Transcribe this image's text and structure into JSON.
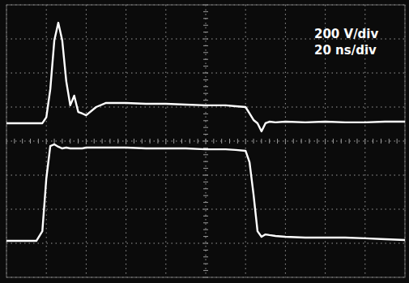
{
  "chart_data": {
    "type": "line",
    "annotations": [
      "200 V/div",
      "20 ns/div"
    ],
    "x": [
      0,
      5,
      10,
      15,
      18,
      20,
      22,
      24,
      26,
      28,
      30,
      32,
      34,
      36,
      38,
      40,
      45,
      50,
      60,
      70,
      80,
      90,
      100,
      110,
      115,
      120,
      122,
      124,
      126,
      128,
      130,
      132,
      135,
      140,
      150,
      160,
      170,
      180,
      190,
      200
    ],
    "series": [
      {
        "color": "#ffffff",
        "values": [
          105,
          105,
          105,
          105,
          105,
          140,
          305,
          590,
          695,
          590,
          352,
          210,
          267,
          171,
          162,
          152,
          200,
          224,
          224,
          219,
          219,
          214,
          210,
          210,
          205,
          200,
          162,
          124,
          105,
          57,
          105,
          114,
          110,
          114,
          110,
          114,
          110,
          110,
          114,
          114
        ]
      },
      {
        "color": "#ffffff",
        "values": [
          -586,
          -586,
          -586,
          -586,
          -529,
          -219,
          -29,
          -19,
          -33,
          -43,
          -38,
          -43,
          -43,
          -43,
          -43,
          -38,
          -38,
          -38,
          -38,
          -43,
          -43,
          -43,
          -48,
          -48,
          -52,
          -57,
          -124,
          -314,
          -529,
          -562,
          -548,
          -552,
          -557,
          -562,
          -567,
          -567,
          -567,
          -571,
          -576,
          -581
        ]
      }
    ],
    "xlim": [
      0,
      200
    ],
    "xticks": [
      0,
      20,
      40,
      60,
      80,
      100,
      120,
      140,
      160,
      180,
      200
    ],
    "ylim": [
      -800,
      800
    ],
    "yticks": [
      -800,
      -600,
      -400,
      -200,
      0,
      200,
      400,
      600,
      800
    ],
    "grid": true,
    "tick_labels": false
  }
}
